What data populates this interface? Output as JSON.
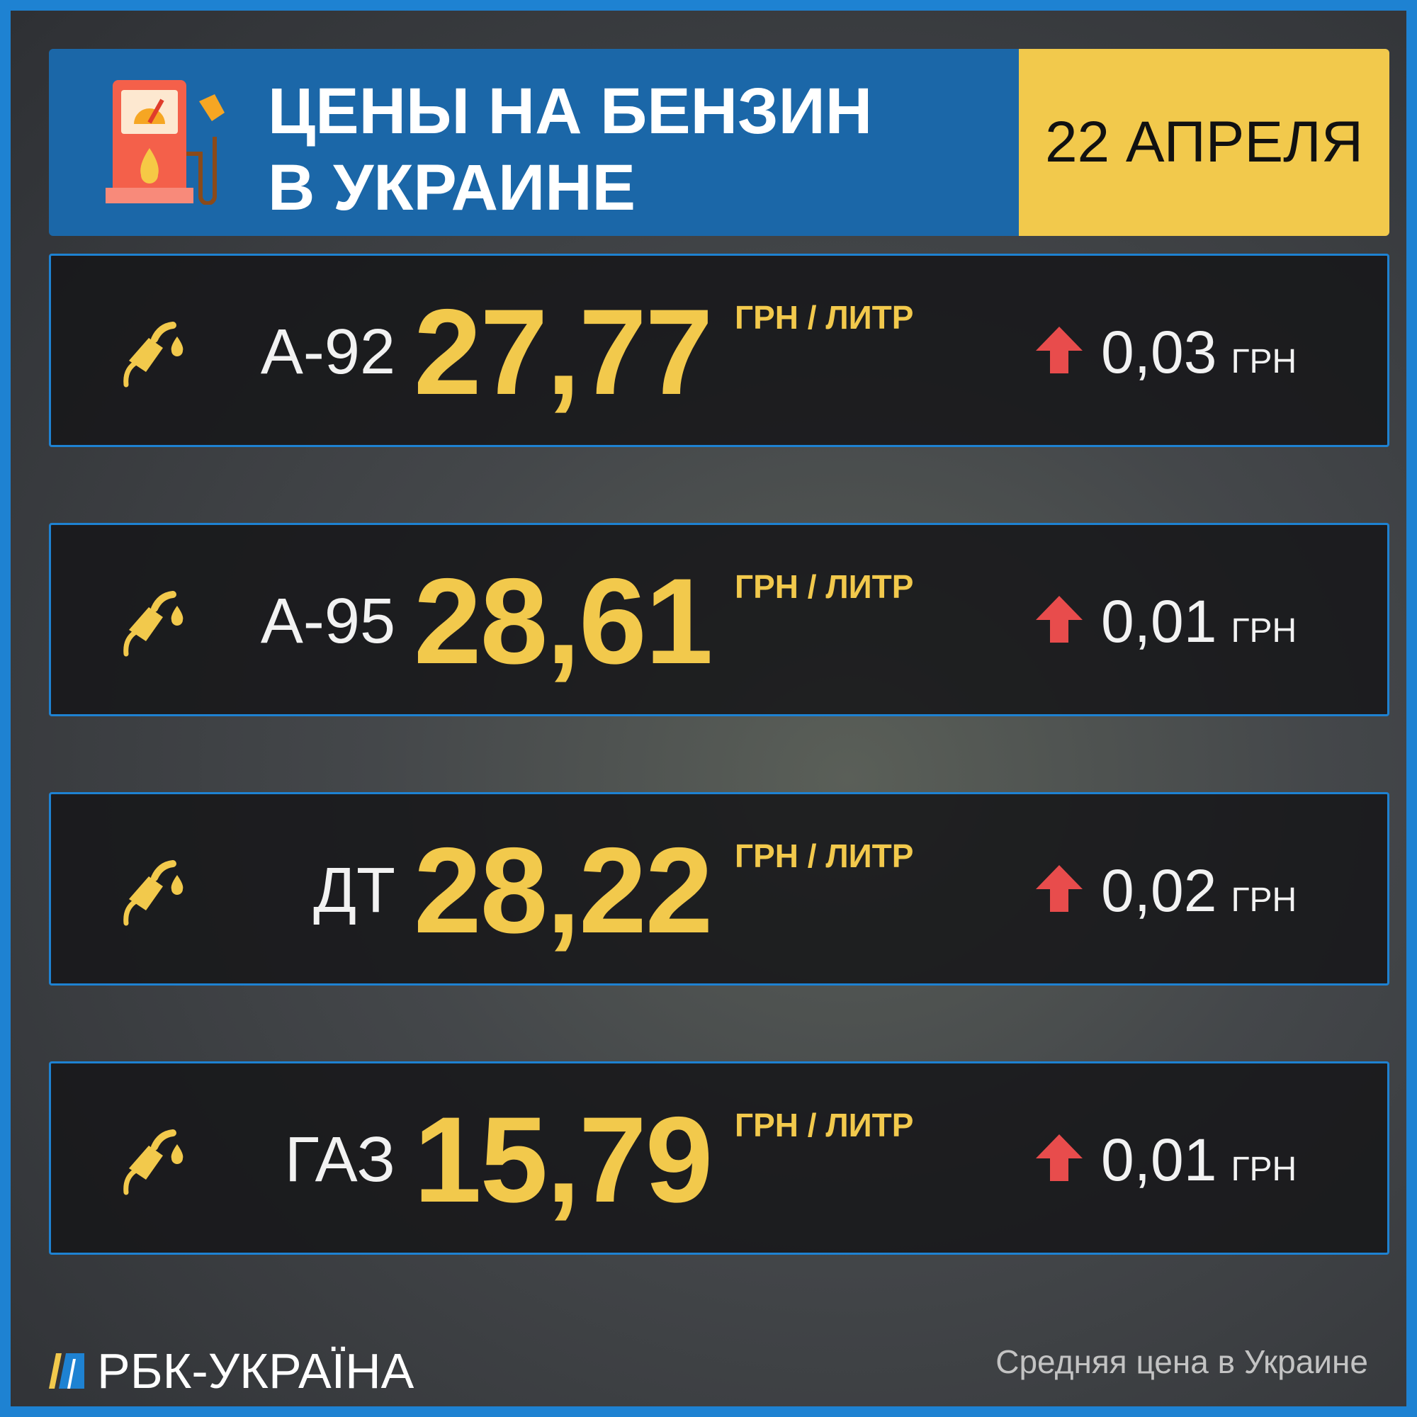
{
  "header": {
    "title_line1": "ЦЕНЫ НА БЕНЗИН",
    "title_line2": "В УКРАИНЕ",
    "date": "22 АПРЕЛЯ"
  },
  "colors": {
    "accent_blue": "#1e82d2",
    "header_blue": "#1b67a8",
    "yellow": "#f2c94c",
    "up_red": "#e84c4c"
  },
  "unit_label": "ГРН / ЛИТР",
  "rows": [
    {
      "fuel": "А-92",
      "price": "27,77",
      "change": "0,03",
      "change_unit": "ГРН",
      "direction": "up"
    },
    {
      "fuel": "А-95",
      "price": "28,61",
      "change": "0,01",
      "change_unit": "ГРН",
      "direction": "up"
    },
    {
      "fuel": "ДТ",
      "price": "28,22",
      "change": "0,02",
      "change_unit": "ГРН",
      "direction": "up"
    },
    {
      "fuel": "ГАЗ",
      "price": "15,79",
      "change": "0,01",
      "change_unit": "ГРН",
      "direction": "up"
    }
  ],
  "footer": {
    "brand": "РБК-УКРАЇНА",
    "note": "Средняя цена в Украине"
  },
  "icons": {
    "header": "gas-pump-icon",
    "row": "fuel-nozzle-icon",
    "change": "arrow-up-icon"
  }
}
